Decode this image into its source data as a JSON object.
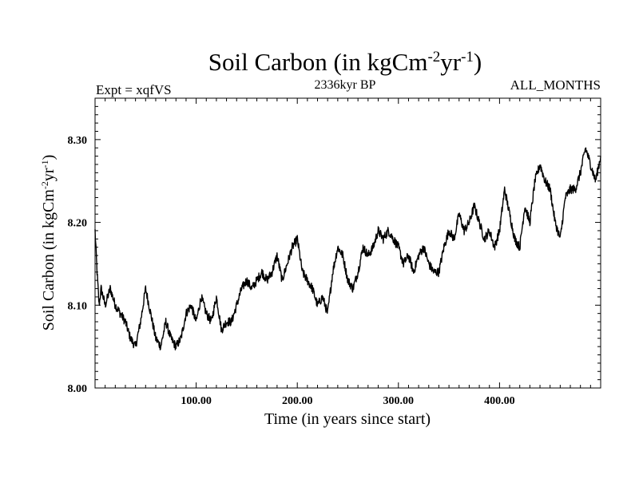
{
  "chart_data": {
    "type": "line",
    "title_main": "Soil Carbon (in kgCm",
    "title_sup1": "-2",
    "title_mid": "yr",
    "title_sup2": "-1",
    "title_end": ")",
    "expt_label": "Expt = xqfVS",
    "period_label": "2336kyr BP",
    "months_label": "ALL_MONTHS",
    "xlabel": "Time (in years since start)",
    "ylabel_main": "Soil Carbon (in kgCm",
    "ylabel_sup1": "-2",
    "ylabel_mid": "yr",
    "ylabel_sup2": "-1",
    "ylabel_end": ")",
    "xlim": [
      0,
      500
    ],
    "ylim": [
      8.0,
      8.35
    ],
    "x_ticks": [
      100,
      200,
      300,
      400
    ],
    "x_tick_labels": [
      "100.00",
      "200.00",
      "300.00",
      "400.00"
    ],
    "y_ticks": [
      8.0,
      8.1,
      8.2,
      8.3
    ],
    "y_tick_labels": [
      "8.00",
      "8.10",
      "8.20",
      "8.30"
    ],
    "series": [
      {
        "name": "Soil Carbon",
        "color": "#000000",
        "x": [
          0,
          2,
          4,
          6,
          8,
          10,
          15,
          20,
          25,
          30,
          35,
          40,
          45,
          50,
          55,
          60,
          65,
          70,
          75,
          80,
          85,
          90,
          95,
          100,
          105,
          110,
          115,
          120,
          125,
          130,
          135,
          140,
          145,
          150,
          155,
          160,
          165,
          170,
          175,
          180,
          185,
          190,
          195,
          200,
          205,
          210,
          215,
          220,
          225,
          230,
          235,
          240,
          245,
          250,
          255,
          260,
          265,
          270,
          275,
          280,
          285,
          290,
          295,
          300,
          305,
          310,
          315,
          320,
          325,
          330,
          335,
          340,
          345,
          350,
          355,
          360,
          365,
          370,
          375,
          380,
          385,
          390,
          395,
          400,
          405,
          410,
          415,
          420,
          425,
          430,
          435,
          440,
          445,
          450,
          455,
          460,
          465,
          470,
          475,
          480,
          485,
          490,
          495,
          500
        ],
        "values": [
          8.19,
          8.14,
          8.1,
          8.12,
          8.11,
          8.1,
          8.12,
          8.1,
          8.09,
          8.08,
          8.06,
          8.05,
          8.08,
          8.12,
          8.09,
          8.06,
          8.05,
          8.08,
          8.06,
          8.05,
          8.06,
          8.09,
          8.1,
          8.08,
          8.11,
          8.09,
          8.08,
          8.11,
          8.07,
          8.08,
          8.08,
          8.1,
          8.12,
          8.13,
          8.12,
          8.13,
          8.14,
          8.13,
          8.14,
          8.16,
          8.13,
          8.15,
          8.17,
          8.18,
          8.14,
          8.13,
          8.12,
          8.1,
          8.11,
          8.09,
          8.14,
          8.17,
          8.16,
          8.13,
          8.12,
          8.14,
          8.17,
          8.16,
          8.17,
          8.19,
          8.18,
          8.19,
          8.18,
          8.17,
          8.15,
          8.16,
          8.14,
          8.16,
          8.17,
          8.15,
          8.14,
          8.14,
          8.17,
          8.19,
          8.18,
          8.21,
          8.19,
          8.2,
          8.22,
          8.2,
          8.18,
          8.19,
          8.17,
          8.19,
          8.24,
          8.21,
          8.18,
          8.17,
          8.22,
          8.2,
          8.25,
          8.27,
          8.25,
          8.24,
          8.2,
          8.18,
          8.23,
          8.24,
          8.24,
          8.26,
          8.29,
          8.27,
          8.25,
          8.28
        ]
      }
    ]
  }
}
